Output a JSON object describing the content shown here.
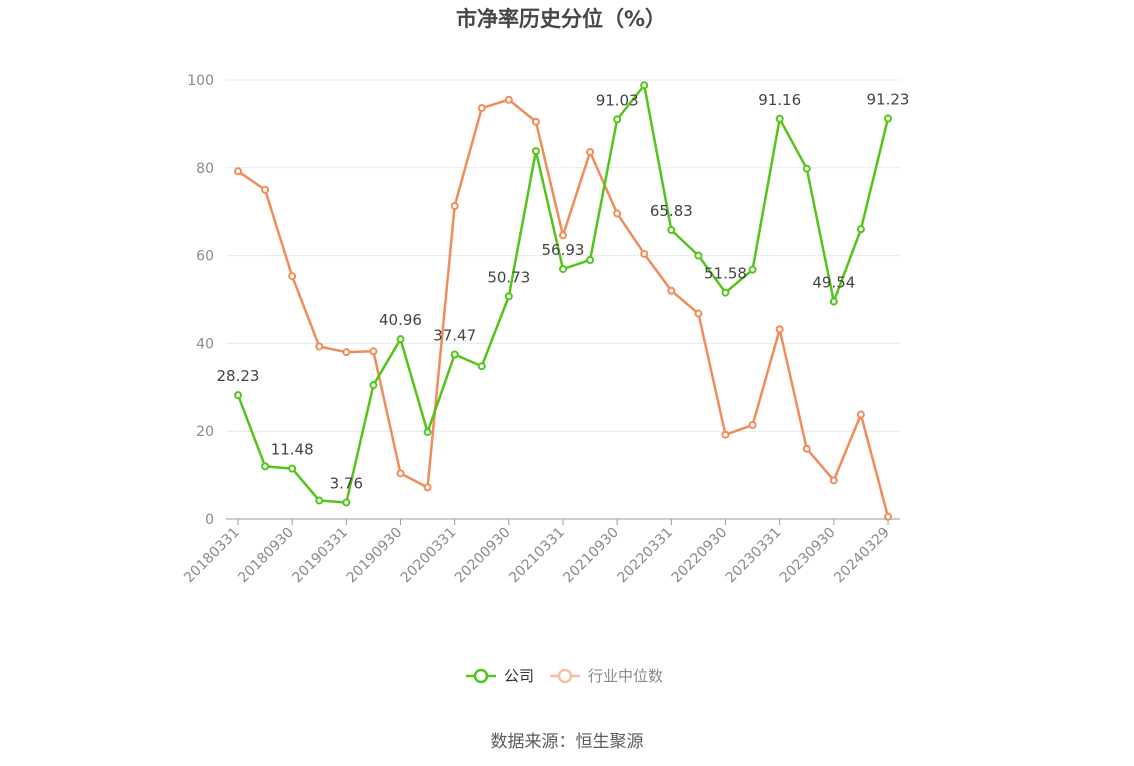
{
  "chart_data": {
    "type": "line",
    "title": "市净率历史分位（%）",
    "source": "数据来源：恒生聚源",
    "xlabel": "",
    "ylabel": "",
    "ylim": [
      0,
      100
    ],
    "yticks": [
      0,
      20,
      40,
      60,
      80,
      100
    ],
    "grid": true,
    "legend_position": "bottom",
    "x": [
      "20180331",
      "20180630",
      "20180930",
      "20181231",
      "20190331",
      "20190630",
      "20190930",
      "20191231",
      "20200331",
      "20200630",
      "20200930",
      "20201231",
      "20210331",
      "20210630",
      "20210930",
      "20211231",
      "20220331",
      "20220630",
      "20220930",
      "20221231",
      "20230331",
      "20230630",
      "20230930",
      "20231231",
      "20240329"
    ],
    "xtick_labels": [
      "20180331",
      "20180930",
      "20190331",
      "20190930",
      "20200331",
      "20200930",
      "20210331",
      "20210930",
      "20220331",
      "20220930",
      "20230331",
      "20230930",
      "20240329"
    ],
    "series": [
      {
        "name": "公司",
        "color": "#52c41a",
        "values": [
          28.23,
          12.0,
          11.48,
          4.2,
          3.76,
          30.5,
          40.96,
          19.8,
          37.47,
          34.8,
          50.73,
          83.8,
          56.93,
          59.0,
          91.03,
          98.8,
          65.83,
          60.0,
          51.58,
          56.8,
          91.16,
          79.8,
          49.54,
          66.0,
          91.23
        ],
        "data_labels": {
          "0": "28.23",
          "2": "11.48",
          "4": "3.76",
          "6": "40.96",
          "8": "37.47",
          "10": "50.73",
          "12": "56.93",
          "14": "91.03",
          "16": "65.83",
          "18": "51.58",
          "20": "91.16",
          "22": "49.54",
          "24": "91.23"
        }
      },
      {
        "name": "行业中位数",
        "color": "#f08c5a",
        "values": [
          79.2,
          75.0,
          55.3,
          39.3,
          38.0,
          38.2,
          10.4,
          7.2,
          71.3,
          93.6,
          95.5,
          90.5,
          64.6,
          83.6,
          69.6,
          60.4,
          52.0,
          46.8,
          19.2,
          21.4,
          43.2,
          16.0,
          8.8,
          23.8,
          0.5
        ]
      }
    ]
  }
}
